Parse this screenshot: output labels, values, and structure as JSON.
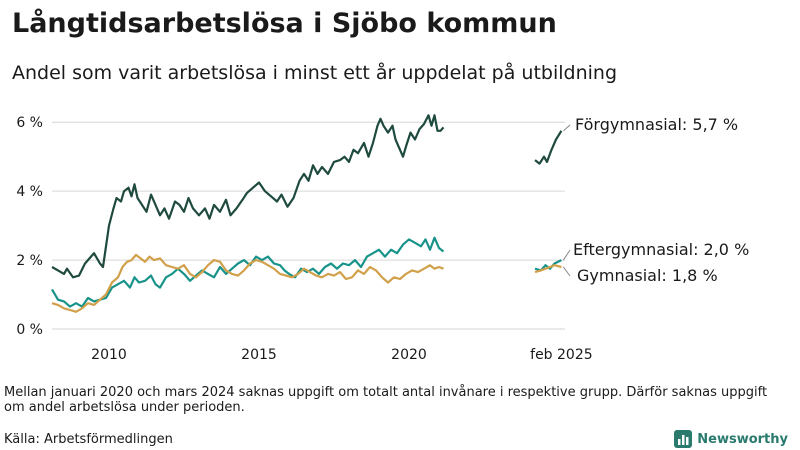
{
  "header": {
    "title": "Långtidsarbetslösa i Sjöbo kommun",
    "subtitle": "Andel som varit arbetslösa i minst ett år uppdelat på utbildning"
  },
  "footer": {
    "note": "Mellan januari 2020 och mars 2024 saknas uppgift om totalt antal invånare i respektive grupp. Därför saknas uppgift om andel arbetslösa under perioden.",
    "source": "Källa: Arbetsförmedlingen",
    "brand": "Newsworthy"
  },
  "colors": {
    "forgymnasial": "#1f4a3f",
    "eftergymnasial": "#18938a",
    "gymnasial": "#d1a04a",
    "grid": "#d6d6d6",
    "brand": "#2a7a6e"
  },
  "chart_data": {
    "type": "line",
    "title": "Långtidsarbetslösa i Sjöbo kommun",
    "xlabel": "",
    "ylabel": "",
    "ylim": [
      0,
      6.5
    ],
    "xlim": [
      2008.1,
      2025.2
    ],
    "yticks": [
      0,
      2,
      4,
      6
    ],
    "ytick_labels": [
      "0 %",
      "2 %",
      "4 %",
      "6 %"
    ],
    "xticks": [
      2010,
      2015,
      2020,
      2025.08
    ],
    "xtick_labels": [
      "2010",
      "2015",
      "2020",
      "feb 2025"
    ],
    "grid": true,
    "series": [
      {
        "name": "Förgymnasial",
        "end_label": "Förgymnasial: 5,7 %",
        "color": "#1f4a3f",
        "segments": [
          [
            [
              2008.1,
              1.8
            ],
            [
              2008.3,
              1.7
            ],
            [
              2008.5,
              1.6
            ],
            [
              2008.6,
              1.75
            ],
            [
              2008.8,
              1.5
            ],
            [
              2009.0,
              1.55
            ],
            [
              2009.2,
              1.9
            ],
            [
              2009.4,
              2.1
            ],
            [
              2009.5,
              2.2
            ],
            [
              2009.7,
              1.9
            ],
            [
              2009.8,
              1.8
            ],
            [
              2009.9,
              2.4
            ],
            [
              2010.0,
              3.0
            ],
            [
              2010.15,
              3.5
            ],
            [
              2010.25,
              3.8
            ],
            [
              2010.4,
              3.7
            ],
            [
              2010.5,
              4.0
            ],
            [
              2010.65,
              4.1
            ],
            [
              2010.75,
              3.85
            ],
            [
              2010.85,
              4.2
            ],
            [
              2010.95,
              3.8
            ],
            [
              2011.1,
              3.6
            ],
            [
              2011.25,
              3.4
            ],
            [
              2011.4,
              3.9
            ],
            [
              2011.55,
              3.6
            ],
            [
              2011.7,
              3.3
            ],
            [
              2011.85,
              3.5
            ],
            [
              2012.0,
              3.2
            ],
            [
              2012.2,
              3.7
            ],
            [
              2012.35,
              3.6
            ],
            [
              2012.5,
              3.4
            ],
            [
              2012.65,
              3.8
            ],
            [
              2012.8,
              3.5
            ],
            [
              2013.0,
              3.3
            ],
            [
              2013.2,
              3.5
            ],
            [
              2013.35,
              3.2
            ],
            [
              2013.5,
              3.6
            ],
            [
              2013.7,
              3.4
            ],
            [
              2013.9,
              3.75
            ],
            [
              2014.05,
              3.3
            ],
            [
              2014.25,
              3.5
            ],
            [
              2014.45,
              3.75
            ],
            [
              2014.6,
              3.95
            ],
            [
              2014.8,
              4.1
            ],
            [
              2015.0,
              4.25
            ],
            [
              2015.2,
              4.0
            ],
            [
              2015.4,
              3.85
            ],
            [
              2015.6,
              3.7
            ],
            [
              2015.75,
              3.9
            ],
            [
              2015.95,
              3.55
            ],
            [
              2016.15,
              3.8
            ],
            [
              2016.35,
              4.3
            ],
            [
              2016.5,
              4.5
            ],
            [
              2016.65,
              4.3
            ],
            [
              2016.8,
              4.75
            ],
            [
              2016.95,
              4.5
            ],
            [
              2017.1,
              4.7
            ],
            [
              2017.3,
              4.5
            ],
            [
              2017.5,
              4.85
            ],
            [
              2017.7,
              4.9
            ],
            [
              2017.85,
              5.0
            ],
            [
              2018.0,
              4.85
            ],
            [
              2018.15,
              5.2
            ],
            [
              2018.3,
              5.1
            ],
            [
              2018.5,
              5.4
            ],
            [
              2018.65,
              5.0
            ],
            [
              2018.8,
              5.4
            ],
            [
              2018.95,
              5.9
            ],
            [
              2019.05,
              6.1
            ],
            [
              2019.15,
              5.9
            ],
            [
              2019.3,
              5.7
            ],
            [
              2019.45,
              5.9
            ],
            [
              2019.55,
              5.5
            ],
            [
              2019.7,
              5.2
            ],
            [
              2019.8,
              5.0
            ],
            [
              2019.9,
              5.3
            ],
            [
              2020.05,
              5.7
            ],
            [
              2020.2,
              5.5
            ],
            [
              2020.35,
              5.8
            ],
            [
              2020.5,
              5.95
            ],
            [
              2020.65,
              6.2
            ],
            [
              2020.75,
              5.9
            ],
            [
              2020.85,
              6.2
            ],
            [
              2020.95,
              5.75
            ],
            [
              2021.05,
              5.75
            ],
            [
              2021.15,
              5.85
            ]
          ],
          [
            [
              2024.2,
              4.9
            ],
            [
              2024.35,
              4.8
            ],
            [
              2024.5,
              5.0
            ],
            [
              2024.6,
              4.85
            ],
            [
              2024.75,
              5.2
            ],
            [
              2024.9,
              5.5
            ],
            [
              2025.08,
              5.75
            ]
          ]
        ]
      },
      {
        "name": "Eftergymnasial",
        "end_label": "Eftergymnasial: 2,0 %",
        "color": "#18938a",
        "segments": [
          [
            [
              2008.1,
              1.15
            ],
            [
              2008.3,
              0.85
            ],
            [
              2008.5,
              0.8
            ],
            [
              2008.7,
              0.65
            ],
            [
              2008.9,
              0.75
            ],
            [
              2009.1,
              0.65
            ],
            [
              2009.3,
              0.9
            ],
            [
              2009.5,
              0.8
            ],
            [
              2009.7,
              0.85
            ],
            [
              2009.9,
              0.9
            ],
            [
              2010.1,
              1.2
            ],
            [
              2010.3,
              1.3
            ],
            [
              2010.5,
              1.4
            ],
            [
              2010.7,
              1.2
            ],
            [
              2010.85,
              1.5
            ],
            [
              2011.0,
              1.35
            ],
            [
              2011.2,
              1.4
            ],
            [
              2011.4,
              1.55
            ],
            [
              2011.55,
              1.3
            ],
            [
              2011.7,
              1.2
            ],
            [
              2011.9,
              1.5
            ],
            [
              2012.1,
              1.6
            ],
            [
              2012.3,
              1.75
            ],
            [
              2012.5,
              1.6
            ],
            [
              2012.7,
              1.4
            ],
            [
              2012.9,
              1.55
            ],
            [
              2013.1,
              1.7
            ],
            [
              2013.3,
              1.6
            ],
            [
              2013.5,
              1.5
            ],
            [
              2013.7,
              1.8
            ],
            [
              2013.9,
              1.6
            ],
            [
              2014.1,
              1.75
            ],
            [
              2014.3,
              1.9
            ],
            [
              2014.5,
              2.0
            ],
            [
              2014.7,
              1.85
            ],
            [
              2014.9,
              2.1
            ],
            [
              2015.1,
              2.0
            ],
            [
              2015.3,
              2.1
            ],
            [
              2015.5,
              1.9
            ],
            [
              2015.7,
              1.85
            ],
            [
              2015.85,
              1.7
            ],
            [
              2016.0,
              1.6
            ],
            [
              2016.2,
              1.5
            ],
            [
              2016.4,
              1.75
            ],
            [
              2016.6,
              1.65
            ],
            [
              2016.8,
              1.75
            ],
            [
              2017.0,
              1.6
            ],
            [
              2017.2,
              1.8
            ],
            [
              2017.4,
              1.9
            ],
            [
              2017.6,
              1.75
            ],
            [
              2017.8,
              1.9
            ],
            [
              2018.0,
              1.85
            ],
            [
              2018.2,
              2.0
            ],
            [
              2018.4,
              1.8
            ],
            [
              2018.6,
              2.1
            ],
            [
              2018.8,
              2.2
            ],
            [
              2019.0,
              2.3
            ],
            [
              2019.2,
              2.1
            ],
            [
              2019.4,
              2.3
            ],
            [
              2019.6,
              2.2
            ],
            [
              2019.8,
              2.45
            ],
            [
              2020.0,
              2.6
            ],
            [
              2020.2,
              2.5
            ],
            [
              2020.4,
              2.4
            ],
            [
              2020.55,
              2.6
            ],
            [
              2020.7,
              2.3
            ],
            [
              2020.85,
              2.65
            ],
            [
              2021.0,
              2.35
            ],
            [
              2021.15,
              2.25
            ]
          ],
          [
            [
              2024.2,
              1.75
            ],
            [
              2024.4,
              1.7
            ],
            [
              2024.55,
              1.85
            ],
            [
              2024.7,
              1.75
            ],
            [
              2024.85,
              1.9
            ],
            [
              2025.08,
              2.0
            ]
          ]
        ]
      },
      {
        "name": "Gymnasial",
        "end_label": "Gymnasial: 1,8 %",
        "color": "#d1a04a",
        "segments": [
          [
            [
              2008.1,
              0.75
            ],
            [
              2008.3,
              0.7
            ],
            [
              2008.5,
              0.6
            ],
            [
              2008.7,
              0.55
            ],
            [
              2008.9,
              0.5
            ],
            [
              2009.1,
              0.6
            ],
            [
              2009.3,
              0.75
            ],
            [
              2009.5,
              0.7
            ],
            [
              2009.7,
              0.85
            ],
            [
              2009.9,
              1.0
            ],
            [
              2010.1,
              1.35
            ],
            [
              2010.3,
              1.5
            ],
            [
              2010.45,
              1.8
            ],
            [
              2010.6,
              1.95
            ],
            [
              2010.75,
              2.0
            ],
            [
              2010.9,
              2.15
            ],
            [
              2011.05,
              2.05
            ],
            [
              2011.2,
              1.95
            ],
            [
              2011.35,
              2.1
            ],
            [
              2011.5,
              2.0
            ],
            [
              2011.7,
              2.05
            ],
            [
              2011.9,
              1.85
            ],
            [
              2012.1,
              1.8
            ],
            [
              2012.3,
              1.75
            ],
            [
              2012.5,
              1.85
            ],
            [
              2012.7,
              1.6
            ],
            [
              2012.9,
              1.5
            ],
            [
              2013.1,
              1.65
            ],
            [
              2013.3,
              1.85
            ],
            [
              2013.5,
              2.0
            ],
            [
              2013.7,
              1.95
            ],
            [
              2013.9,
              1.7
            ],
            [
              2014.1,
              1.6
            ],
            [
              2014.3,
              1.55
            ],
            [
              2014.5,
              1.7
            ],
            [
              2014.7,
              1.9
            ],
            [
              2014.9,
              2.0
            ],
            [
              2015.1,
              1.95
            ],
            [
              2015.3,
              1.85
            ],
            [
              2015.5,
              1.75
            ],
            [
              2015.7,
              1.6
            ],
            [
              2015.9,
              1.55
            ],
            [
              2016.1,
              1.5
            ],
            [
              2016.3,
              1.6
            ],
            [
              2016.5,
              1.75
            ],
            [
              2016.7,
              1.65
            ],
            [
              2016.9,
              1.55
            ],
            [
              2017.1,
              1.5
            ],
            [
              2017.3,
              1.6
            ],
            [
              2017.5,
              1.55
            ],
            [
              2017.7,
              1.65
            ],
            [
              2017.9,
              1.45
            ],
            [
              2018.1,
              1.5
            ],
            [
              2018.3,
              1.7
            ],
            [
              2018.5,
              1.6
            ],
            [
              2018.7,
              1.8
            ],
            [
              2018.9,
              1.7
            ],
            [
              2019.1,
              1.5
            ],
            [
              2019.3,
              1.35
            ],
            [
              2019.5,
              1.5
            ],
            [
              2019.7,
              1.45
            ],
            [
              2019.9,
              1.6
            ],
            [
              2020.1,
              1.7
            ],
            [
              2020.3,
              1.65
            ],
            [
              2020.5,
              1.75
            ],
            [
              2020.7,
              1.85
            ],
            [
              2020.85,
              1.75
            ],
            [
              2021.0,
              1.8
            ],
            [
              2021.15,
              1.75
            ]
          ],
          [
            [
              2024.2,
              1.65
            ],
            [
              2024.4,
              1.7
            ],
            [
              2024.55,
              1.75
            ],
            [
              2024.7,
              1.8
            ],
            [
              2024.85,
              1.85
            ],
            [
              2025.08,
              1.8
            ]
          ]
        ]
      }
    ]
  }
}
